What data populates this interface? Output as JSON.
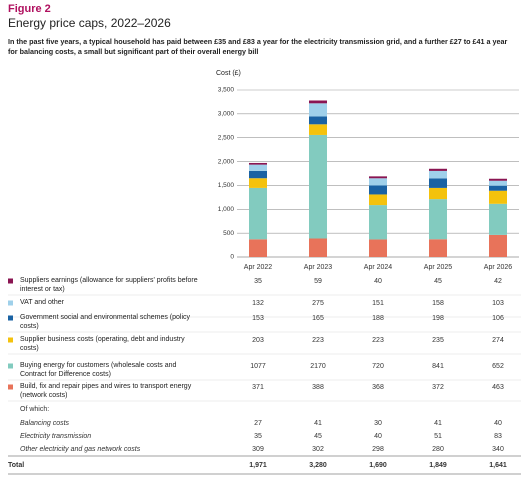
{
  "chart_data": {
    "type": "stacked-bar",
    "figure_label": "Figure 2",
    "title": "Energy price caps, 2022–2026",
    "subtitle": "In the past five years, a typical household has paid between £35 and £83 a year for the electricity transmission grid, and a further £27 to £41 a year for balancing costs, a small but significant part of their overall energy bill",
    "y_label": "Cost (£)",
    "categories": [
      "Apr 2022",
      "Apr 2023",
      "Apr 2024",
      "Apr 2025",
      "Apr 2026"
    ],
    "ylim": [
      0,
      3500
    ],
    "yticks": [
      0,
      500,
      {
        "value": 1000,
        "label": "1,000"
      },
      {
        "value": 1500,
        "label": "1,500"
      },
      {
        "value": 2000,
        "label": "2,000"
      },
      {
        "value": 2500,
        "label": "2,500"
      },
      {
        "value": 3000,
        "label": "3,000"
      },
      {
        "value": 3500,
        "label": "3,500"
      }
    ],
    "grid": true,
    "series": [
      {
        "name": "Suppliers earnings (allowance for suppliers' profits before interest or tax)",
        "color": "#8a1552",
        "values": [
          35,
          59,
          40,
          45,
          42
        ]
      },
      {
        "name": "VAT and other",
        "color": "#9fd0ea",
        "values": [
          132,
          275,
          151,
          158,
          103
        ]
      },
      {
        "name": "Government social and environmental schemes (policy costs)",
        "color": "#1a62a3",
        "values": [
          153,
          165,
          188,
          198,
          106
        ]
      },
      {
        "name": "Supplier business costs (operating, debt and industry costs)",
        "color": "#f4c20d",
        "values": [
          203,
          223,
          223,
          235,
          274
        ]
      },
      {
        "name": "Buying energy for customers (wholesale costs and Contract for Difference costs)",
        "color": "#82cbbf",
        "values": [
          1077,
          2170,
          720,
          841,
          652
        ]
      },
      {
        "name": "Build, fix and repair pipes and wires to transport energy (network costs)",
        "color": "#e8735a",
        "values": [
          371,
          388,
          368,
          372,
          463
        ]
      }
    ],
    "of_which_label": "Of which:",
    "sub_rows": [
      {
        "name": "Balancing costs",
        "values": [
          27,
          41,
          30,
          41,
          40
        ]
      },
      {
        "name": "Electricity transmission",
        "values": [
          35,
          45,
          40,
          51,
          83
        ]
      },
      {
        "name": "Other electricity and gas network costs",
        "values": [
          309,
          302,
          298,
          280,
          340
        ]
      }
    ],
    "total": {
      "label": "Total",
      "values": [
        1971,
        3280,
        1690,
        1849,
        1641
      ],
      "value_labels": [
        "1,971",
        "3,280",
        "1,690",
        "1,849",
        "1,641"
      ]
    }
  }
}
